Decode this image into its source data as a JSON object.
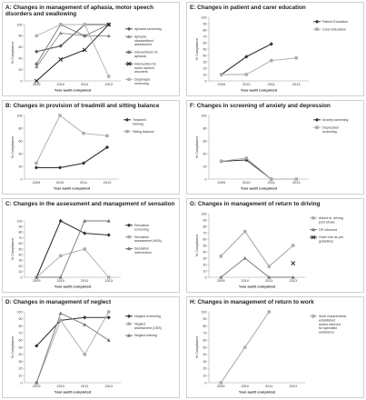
{
  "chart_data": [
    {
      "panel": "A",
      "type": "line",
      "title": "A: Changes in management of aphasia, motor speech disorders and swallowing",
      "xlabel": "Year audit completed",
      "ylabel": "% Compliance",
      "categories": [
        "2009",
        "2010",
        "2011",
        "2013"
      ],
      "ylim": [
        0,
        100
      ],
      "yticks": [
        "0",
        "20",
        "40",
        "60",
        "80",
        "100"
      ],
      "series": [
        {
          "name": "Aphasia screening",
          "values": [
            52,
            62,
            100,
            100
          ],
          "color": "#555555",
          "marker": "diamond"
        },
        {
          "name": "Aphasia standardised assessment",
          "values": [
            25,
            85,
            80,
            80
          ],
          "color": "#888888",
          "marker": "triangle"
        },
        {
          "name": "Interventions for aphasia",
          "values": [
            30,
            100,
            80,
            100
          ],
          "color": "#777777",
          "marker": "square"
        },
        {
          "name": "Intervention for motor speech disorders",
          "values": [
            0,
            38,
            55,
            100
          ],
          "color": "#111111",
          "marker": "x"
        },
        {
          "name": "Dysphagia screening",
          "values": [
            80,
            100,
            100,
            8
          ],
          "color": "#b0b0b0",
          "marker": "square"
        }
      ]
    },
    {
      "panel": "B",
      "type": "line",
      "title": "B: Changes in provision of treadmill and sitting balance",
      "xlabel": "Year audit completed",
      "ylabel": "% Compliance",
      "categories": [
        "2009",
        "2010",
        "2011",
        "2013"
      ],
      "ylim": [
        0,
        100
      ],
      "yticks": [
        "0",
        "20",
        "40",
        "60",
        "80",
        "100"
      ],
      "series": [
        {
          "name": "Treadmill training",
          "values": [
            18,
            18,
            25,
            50
          ],
          "color": "#333333",
          "marker": "diamond"
        },
        {
          "name": "Sitting balance",
          "values": [
            25,
            100,
            72,
            68
          ],
          "color": "#aaaaaa",
          "marker": "square"
        }
      ]
    },
    {
      "panel": "C",
      "type": "line",
      "title": "C: Changes in the assessment and management of sensation",
      "xlabel": "Year audit completed",
      "ylabel": "% Compliance",
      "categories": [
        "2009",
        "2010",
        "2011",
        "2013"
      ],
      "ylim": [
        0,
        100
      ],
      "yticks": [
        "0",
        "10",
        "20",
        "30",
        "40",
        "50",
        "60",
        "70",
        "80",
        "90",
        "100"
      ],
      "series": [
        {
          "name": "Sensation screening",
          "values": [
            0,
            100,
            78,
            75
          ],
          "color": "#333333",
          "marker": "diamond"
        },
        {
          "name": "Sensation assessment (NSA)",
          "values": [
            0,
            38,
            50,
            0
          ],
          "color": "#aaaaaa",
          "marker": "square"
        },
        {
          "name": "Sensation Intervention",
          "values": [
            0,
            0,
            100,
            100
          ],
          "color": "#777777",
          "marker": "triangle"
        }
      ]
    },
    {
      "panel": "D",
      "type": "line",
      "title": "D: Changes in management of neglect",
      "xlabel": "Year audit completed",
      "ylabel": "% Compliance",
      "categories": [
        "2009",
        "2010",
        "2011",
        "2013"
      ],
      "ylim": [
        0,
        100
      ],
      "yticks": [
        "0",
        "10",
        "20",
        "30",
        "40",
        "50",
        "60",
        "70",
        "80",
        "90",
        "100"
      ],
      "series": [
        {
          "name": "Neglect screening",
          "values": [
            52,
            88,
            92,
            92
          ],
          "color": "#333333",
          "marker": "diamond"
        },
        {
          "name": "Neglect assessment (CBS)",
          "values": [
            0,
            88,
            40,
            100
          ],
          "color": "#aaaaaa",
          "marker": "square"
        },
        {
          "name": "Neglect training",
          "values": [
            0,
            98,
            82,
            60
          ],
          "color": "#777777",
          "marker": "triangle"
        }
      ]
    },
    {
      "panel": "E",
      "type": "line",
      "title": "E: Changes in patient and carer education",
      "xlabel": "Year audit completed",
      "ylabel": "% Compliance",
      "categories": [
        "2009",
        "2010",
        "2011",
        "2013"
      ],
      "ylim": [
        0,
        100
      ],
      "yticks": [
        "0",
        "10",
        "20",
        "30",
        "40",
        "50",
        "60",
        "70",
        "80",
        "90",
        "100"
      ],
      "series": [
        {
          "name": "Patient Education",
          "values": [
            10,
            38,
            58,
            null
          ],
          "color": "#333333",
          "marker": "diamond"
        },
        {
          "name": "Carer Education",
          "values": [
            10,
            10,
            32,
            36
          ],
          "color": "#aaaaaa",
          "marker": "square"
        }
      ]
    },
    {
      "panel": "F",
      "type": "line",
      "title": "F: Changes in screening of anxiety and depression",
      "xlabel": "Year audit completed",
      "ylabel": "% Compliance",
      "categories": [
        "2009",
        "2010",
        "2011",
        "2013"
      ],
      "ylim": [
        0,
        100
      ],
      "yticks": [
        "0",
        "20",
        "40",
        "60",
        "80",
        "100"
      ],
      "series": [
        {
          "name": "Anxiety screening",
          "values": [
            28,
            30,
            0,
            null
          ],
          "color": "#333333",
          "marker": "diamond"
        },
        {
          "name": "Depression screening",
          "values": [
            28,
            33,
            0,
            0
          ],
          "color": "#aaaaaa",
          "marker": "square"
        }
      ]
    },
    {
      "panel": "G",
      "type": "line",
      "title": "G: Changes in management of return to driving",
      "xlabel": "Year audit completed",
      "ylabel": "% Compliance",
      "categories": [
        "2009",
        "2010",
        "2011",
        "2013"
      ],
      "ylim": [
        0,
        100
      ],
      "yticks": [
        "0",
        "10",
        "20",
        "30",
        "40",
        "50",
        "60",
        "70",
        "80",
        "90",
        "100"
      ],
      "series": [
        {
          "name": "Asked re: driving post stroke",
          "values": [
            33,
            72,
            17,
            50
          ],
          "color": "#aaaaaa",
          "marker": "square"
        },
        {
          "name": "GP informed",
          "values": [
            0,
            30,
            0,
            0
          ],
          "color": "#777777",
          "marker": "triangle"
        },
        {
          "name": "Given info as per guidelines",
          "values": [
            null,
            null,
            null,
            22
          ],
          "color": "#222222",
          "marker": "x"
        }
      ]
    },
    {
      "panel": "H",
      "type": "line",
      "title": "H: Changes in management of return to work",
      "xlabel": "Year audit completed",
      "ylabel": "% Compliance",
      "categories": [
        "2009",
        "2010",
        "2011",
        "2013"
      ],
      "ylim": [
        0,
        100
      ],
      "yticks": [
        "0",
        "10",
        "20",
        "30",
        "40",
        "50",
        "60",
        "70",
        "80",
        "90",
        "100"
      ],
      "series": [
        {
          "name": "Work requirements established and/or referred for specialist assistance",
          "values": [
            0,
            50,
            100,
            null
          ],
          "color": "#aaaaaa",
          "marker": "square"
        }
      ]
    }
  ]
}
